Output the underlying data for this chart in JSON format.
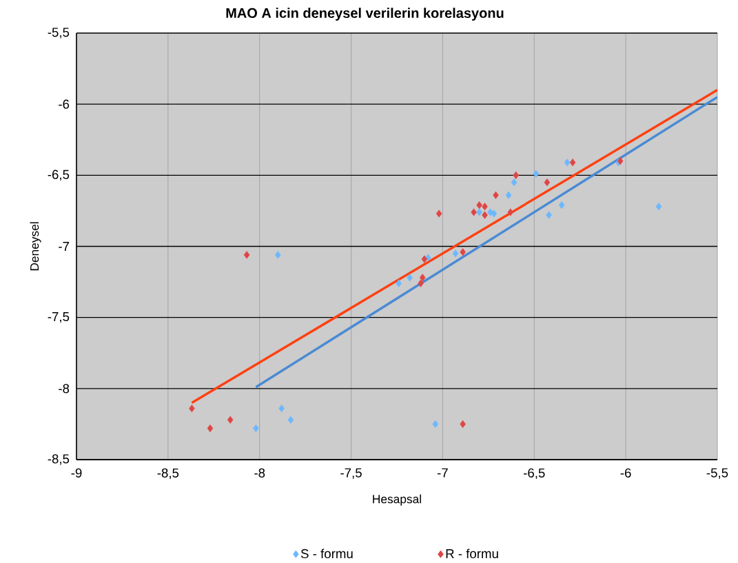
{
  "chart_data": {
    "type": "scatter",
    "title": "MAO A icin deneysel verilerin korelasyonu",
    "xlabel": "Hesapsal",
    "ylabel": "Deneysel",
    "xlim": [
      -9,
      -5.5
    ],
    "ylim": [
      -8.5,
      -5.5
    ],
    "xticks": [
      -9,
      {
        "value": -8.5,
        "label": "-8,5"
      },
      -8,
      {
        "value": -7.5,
        "label": "-7,5"
      },
      -7,
      {
        "value": -6.5,
        "label": "-6,5"
      },
      -6,
      {
        "value": -5.5,
        "label": "-5,5"
      }
    ],
    "yticks": [
      {
        "value": -8.5,
        "label": "-8,5"
      },
      -8,
      {
        "value": -7.5,
        "label": "-7,5"
      },
      -7,
      {
        "value": -6.5,
        "label": "-6,5"
      },
      -6,
      {
        "value": -5.5,
        "label": "-5,5"
      }
    ],
    "grid": true,
    "legend": "bottom",
    "series": [
      {
        "name": "S - formu",
        "marker": "diamond",
        "color": "#6cb8ff",
        "x": [
          -7.24,
          -7.18,
          -7.08,
          -6.93,
          -6.8,
          -6.74,
          -6.72,
          -6.64,
          -6.61,
          -6.49,
          -6.42,
          -6.35,
          -6.32,
          -6.04,
          -5.82,
          -7.9,
          -7.88,
          -7.83,
          -8.02,
          -7.04
        ],
        "values": [
          -7.26,
          -7.22,
          -7.08,
          -7.05,
          -6.76,
          -6.76,
          -6.77,
          -6.64,
          -6.55,
          -6.49,
          -6.78,
          -6.71,
          -6.41,
          -6.41,
          -6.72,
          -7.06,
          -8.14,
          -8.22,
          -8.28,
          -8.25
        ]
      },
      {
        "name": "R - formu",
        "marker": "diamond",
        "color": "#e04545",
        "x": [
          -8.07,
          -8.37,
          -8.27,
          -8.16,
          -7.1,
          -7.11,
          -7.12,
          -6.89,
          -7.02,
          -6.89,
          -6.83,
          -6.8,
          -6.77,
          -6.77,
          -6.71,
          -6.63,
          -6.6,
          -6.43,
          -6.29,
          -6.03
        ],
        "values": [
          -7.06,
          -8.14,
          -8.28,
          -8.22,
          -7.09,
          -7.22,
          -7.26,
          -8.25,
          -6.77,
          -7.04,
          -6.76,
          -6.71,
          -6.72,
          -6.78,
          -6.64,
          -6.76,
          -6.5,
          -6.55,
          -6.41,
          -6.4
        ]
      },
      {
        "type": "line",
        "marker": "none",
        "color": "#4a8ad4",
        "x": [
          -8.02,
          -5.5
        ],
        "values": [
          -7.99,
          -5.95
        ]
      },
      {
        "type": "line",
        "marker": "none",
        "color": "#ff4010",
        "x": [
          -8.37,
          -5.5
        ],
        "values": [
          -8.1,
          -5.9
        ]
      }
    ]
  }
}
